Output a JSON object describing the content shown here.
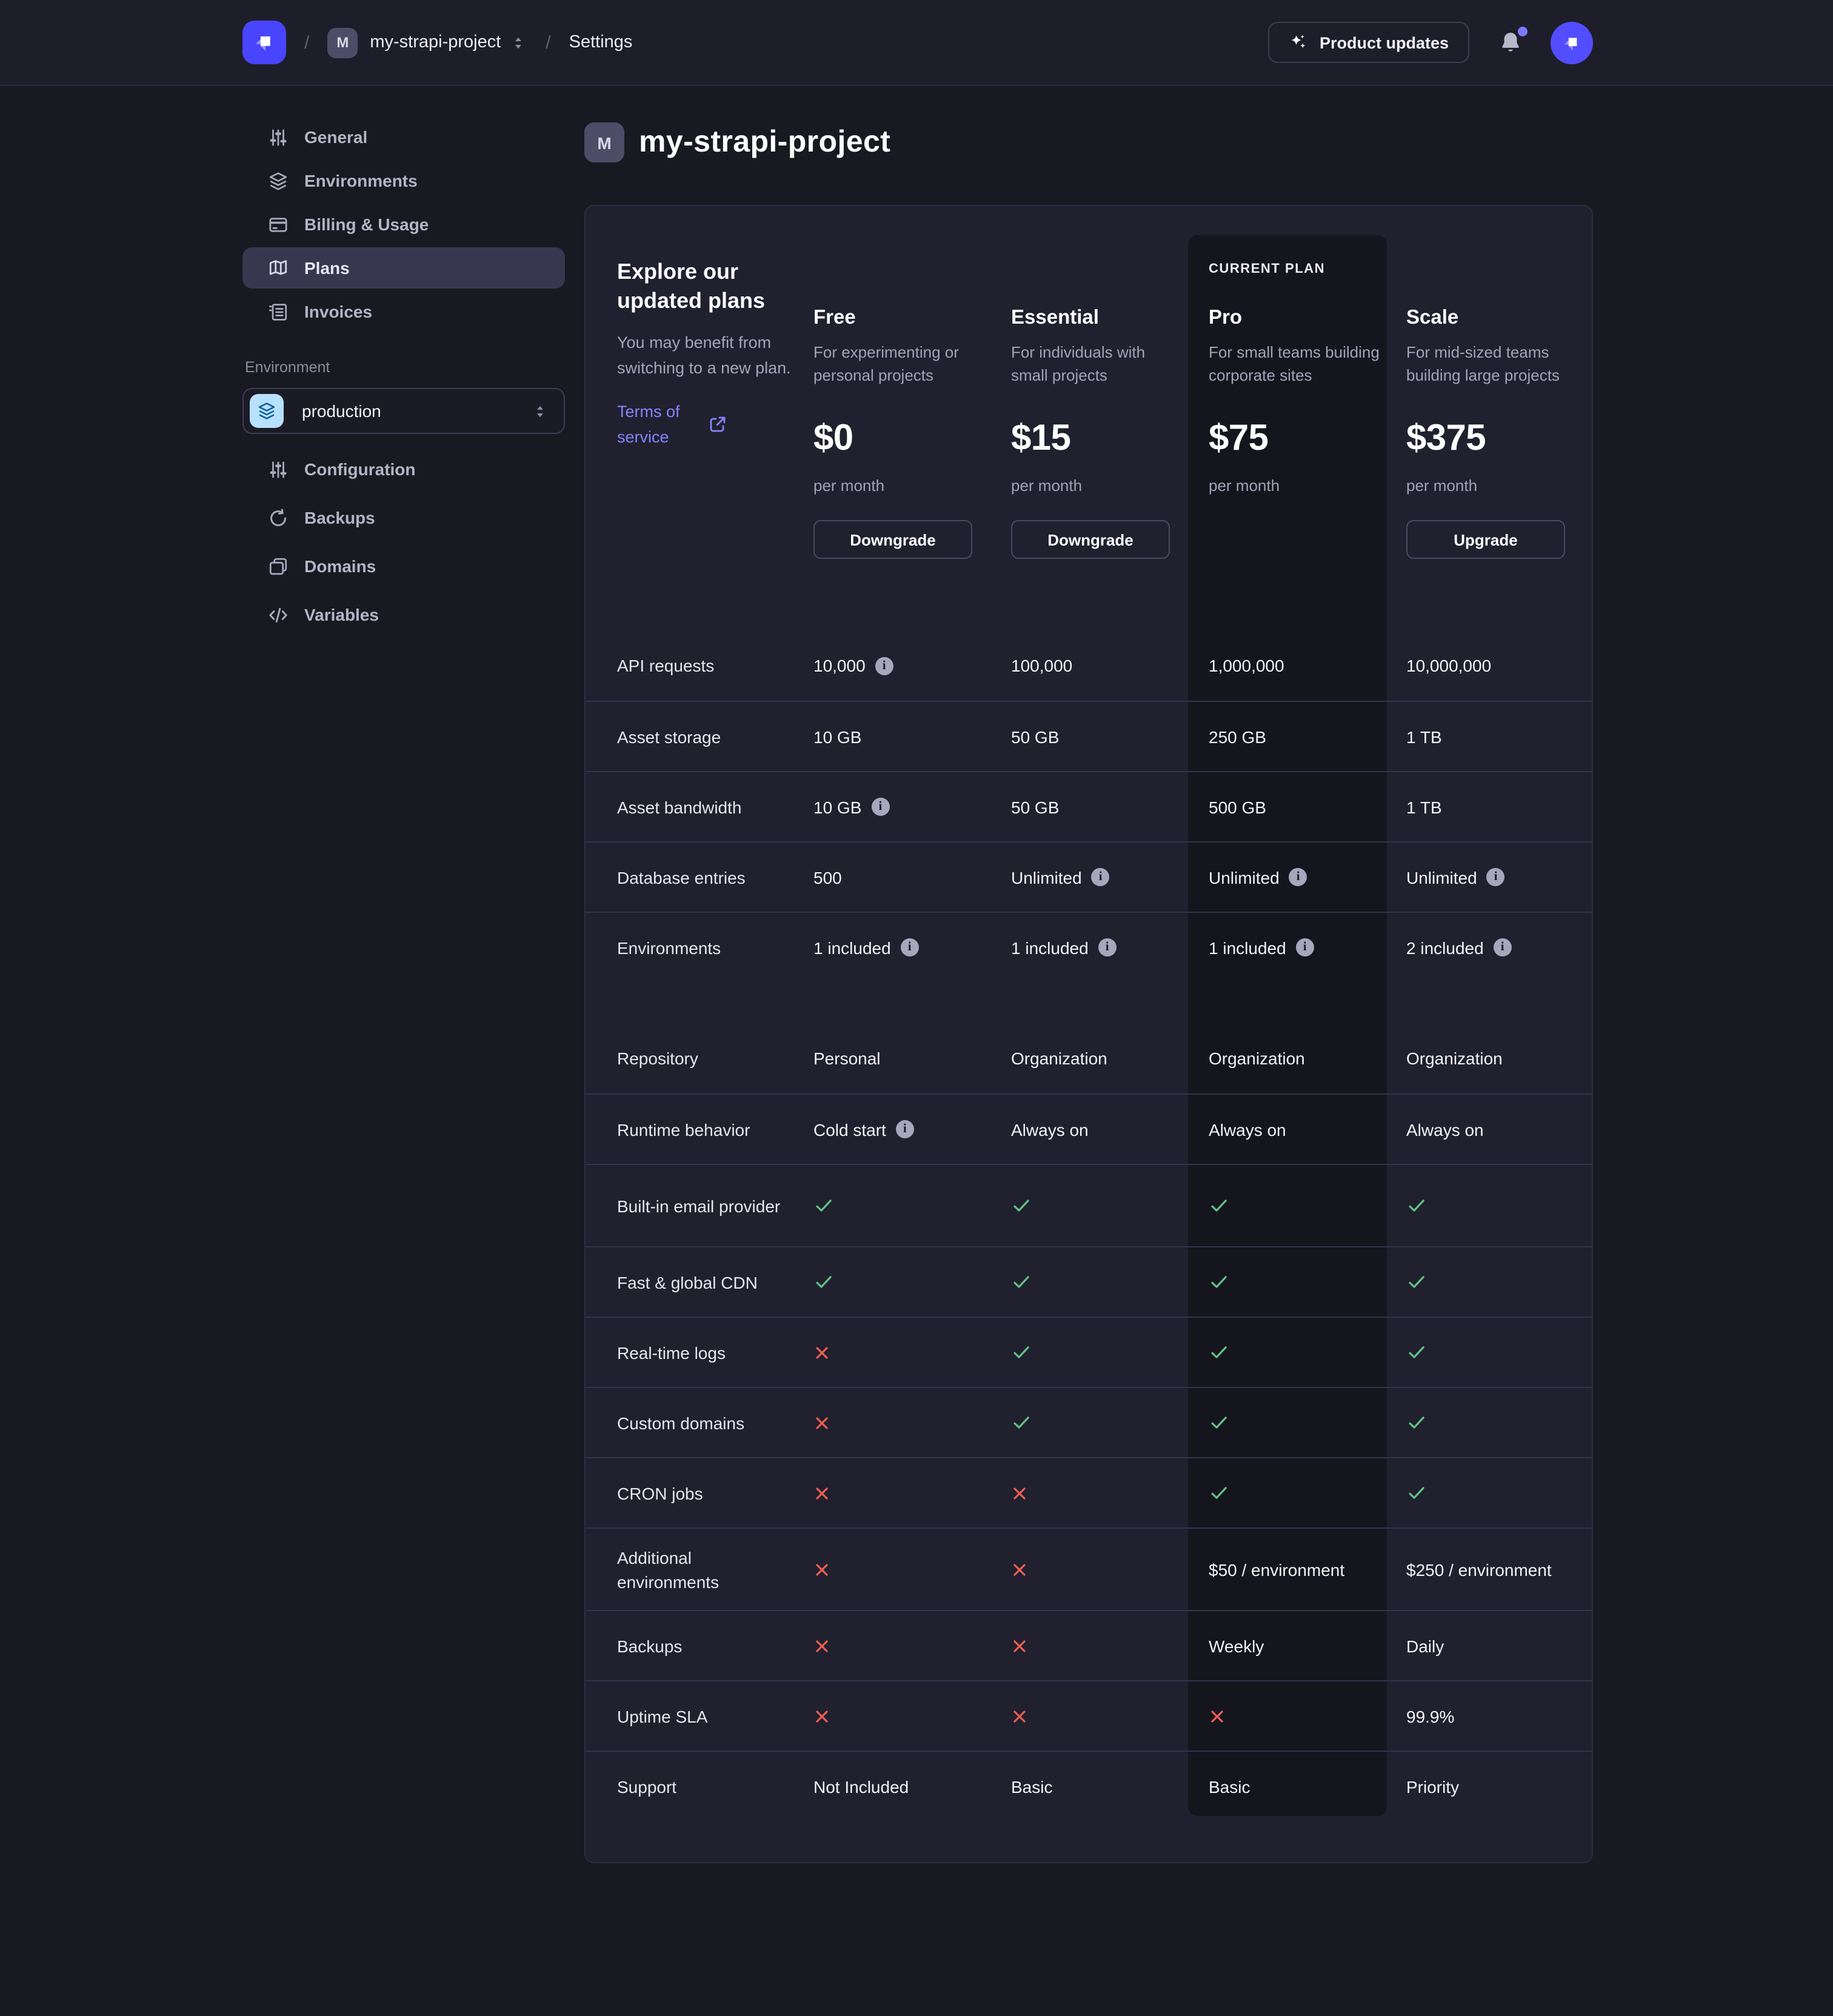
{
  "colors": {
    "accent": "#4945ff",
    "link": "#8584ff",
    "success": "#62c185",
    "danger": "#ee5e52",
    "env_icon_bg": "#b8e1ff"
  },
  "topbar": {
    "slash": "/",
    "project_badge": "M",
    "project": "my-strapi-project",
    "section": "Settings",
    "product_updates": "Product updates"
  },
  "sidebar": {
    "project_items": [
      {
        "label": "General",
        "icon": "sliders-icon",
        "active": false
      },
      {
        "label": "Environments",
        "icon": "layers-icon",
        "active": false
      },
      {
        "label": "Billing & Usage",
        "icon": "credit-card-icon",
        "active": false
      },
      {
        "label": "Plans",
        "icon": "map-icon",
        "active": true
      },
      {
        "label": "Invoices",
        "icon": "invoice-icon",
        "active": false
      }
    ],
    "environment_label": "Environment",
    "environment_value": "production",
    "environment_items": [
      {
        "label": "Configuration",
        "icon": "sliders-icon"
      },
      {
        "label": "Backups",
        "icon": "rotate-icon"
      },
      {
        "label": "Domains",
        "icon": "folders-icon"
      },
      {
        "label": "Variables",
        "icon": "code-icon"
      }
    ]
  },
  "page": {
    "badge": "M",
    "title": "my-strapi-project"
  },
  "intro": {
    "title": "Explore our updated plans",
    "body": "You may benefit from switching to a new plan.",
    "link": "Terms of service"
  },
  "plans": [
    {
      "name": "Free",
      "desc": "For experimenting or personal projects",
      "price": "$0",
      "per": "per month",
      "button": "Downgrade",
      "current": false
    },
    {
      "name": "Essential",
      "desc": "For individuals with small projects",
      "price": "$15",
      "per": "per month",
      "button": "Downgrade",
      "current": false
    },
    {
      "name": "Pro",
      "desc": "For small teams building corporate sites",
      "price": "$75",
      "per": "per month",
      "button": null,
      "current": true,
      "current_label": "CURRENT PLAN"
    },
    {
      "name": "Scale",
      "desc": "For mid-sized teams building large projects",
      "price": "$375",
      "per": "per month",
      "button": "Upgrade",
      "current": false
    }
  ],
  "features": [
    {
      "label": "API requests",
      "cells": [
        {
          "t": "text",
          "v": "10,000",
          "i": true
        },
        {
          "t": "text",
          "v": "100,000"
        },
        {
          "t": "text",
          "v": "1,000,000"
        },
        {
          "t": "text",
          "v": "10,000,000"
        }
      ]
    },
    {
      "label": "Asset storage",
      "cells": [
        {
          "t": "text",
          "v": "10 GB"
        },
        {
          "t": "text",
          "v": "50 GB"
        },
        {
          "t": "text",
          "v": "250 GB"
        },
        {
          "t": "text",
          "v": "1 TB"
        }
      ]
    },
    {
      "label": "Asset bandwidth",
      "cells": [
        {
          "t": "text",
          "v": "10 GB",
          "i": true
        },
        {
          "t": "text",
          "v": "50 GB"
        },
        {
          "t": "text",
          "v": "500 GB"
        },
        {
          "t": "text",
          "v": "1 TB"
        }
      ]
    },
    {
      "label": "Database entries",
      "cells": [
        {
          "t": "text",
          "v": "500"
        },
        {
          "t": "text",
          "v": "Unlimited",
          "i": true
        },
        {
          "t": "text",
          "v": "Unlimited",
          "i": true
        },
        {
          "t": "text",
          "v": "Unlimited",
          "i": true
        }
      ]
    },
    {
      "label": "Environments",
      "cells": [
        {
          "t": "text",
          "v": "1 included",
          "i": true
        },
        {
          "t": "text",
          "v": "1 included",
          "i": true
        },
        {
          "t": "text",
          "v": "1 included",
          "i": true
        },
        {
          "t": "text",
          "v": "2 included",
          "i": true
        }
      ]
    },
    {
      "label": "Repository",
      "gap": true,
      "cells": [
        {
          "t": "text",
          "v": "Personal"
        },
        {
          "t": "text",
          "v": "Organization"
        },
        {
          "t": "text",
          "v": "Organization"
        },
        {
          "t": "text",
          "v": "Organization"
        }
      ]
    },
    {
      "label": "Runtime behavior",
      "cells": [
        {
          "t": "text",
          "v": "Cold start",
          "i": true
        },
        {
          "t": "text",
          "v": "Always on"
        },
        {
          "t": "text",
          "v": "Always on"
        },
        {
          "t": "text",
          "v": "Always on"
        }
      ]
    },
    {
      "label": "Built-in email provider",
      "tall": true,
      "cells": [
        {
          "t": "check"
        },
        {
          "t": "check"
        },
        {
          "t": "check"
        },
        {
          "t": "check"
        }
      ]
    },
    {
      "label": "Fast & global CDN",
      "cells": [
        {
          "t": "check"
        },
        {
          "t": "check"
        },
        {
          "t": "check"
        },
        {
          "t": "check"
        }
      ]
    },
    {
      "label": "Real-time logs",
      "cells": [
        {
          "t": "cross"
        },
        {
          "t": "check"
        },
        {
          "t": "check"
        },
        {
          "t": "check"
        }
      ]
    },
    {
      "label": "Custom domains",
      "cells": [
        {
          "t": "cross"
        },
        {
          "t": "check"
        },
        {
          "t": "check"
        },
        {
          "t": "check"
        }
      ]
    },
    {
      "label": "CRON jobs",
      "cells": [
        {
          "t": "cross"
        },
        {
          "t": "cross"
        },
        {
          "t": "check"
        },
        {
          "t": "check"
        }
      ]
    },
    {
      "label": "Additional environments",
      "tall": true,
      "cells": [
        {
          "t": "cross"
        },
        {
          "t": "cross"
        },
        {
          "t": "text",
          "v": "$50 / environment"
        },
        {
          "t": "text",
          "v": "$250 / environment"
        }
      ]
    },
    {
      "label": "Backups",
      "cells": [
        {
          "t": "cross"
        },
        {
          "t": "cross"
        },
        {
          "t": "text",
          "v": "Weekly"
        },
        {
          "t": "text",
          "v": "Daily"
        }
      ]
    },
    {
      "label": "Uptime SLA",
      "cells": [
        {
          "t": "cross"
        },
        {
          "t": "cross"
        },
        {
          "t": "cross"
        },
        {
          "t": "text",
          "v": "99.9%"
        }
      ]
    },
    {
      "label": "Support",
      "cells": [
        {
          "t": "text",
          "v": "Not Included"
        },
        {
          "t": "text",
          "v": "Basic"
        },
        {
          "t": "text",
          "v": "Basic"
        },
        {
          "t": "text",
          "v": "Priority"
        }
      ]
    }
  ]
}
